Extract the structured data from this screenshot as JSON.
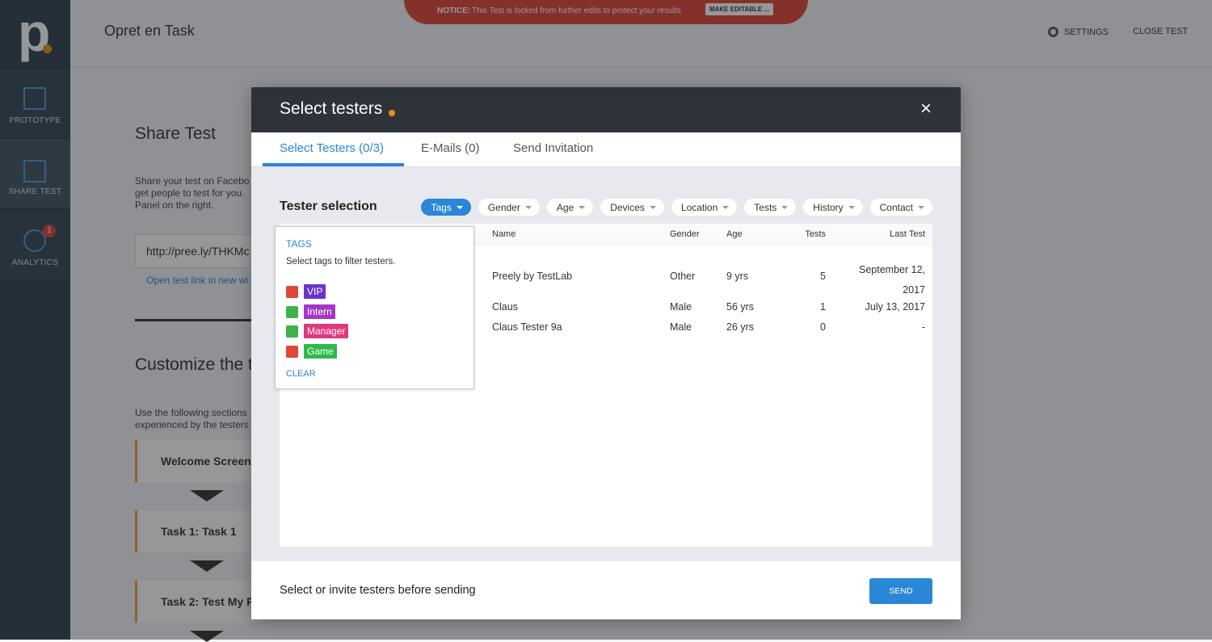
{
  "app": {
    "logo": "p",
    "page_title": "Opret en Task",
    "notice_label": "NOTICE:",
    "notice_text": "This Test is locked from further edits to protect your results",
    "notice_button": "MAKE EDITABLE ...",
    "settings": "SETTINGS",
    "close_test": "CLOSE TEST"
  },
  "sidebar": [
    {
      "label": "PROTOTYPE"
    },
    {
      "label": "SHARE TEST"
    },
    {
      "label": "ANALYTICS",
      "badge": "1"
    }
  ],
  "background": {
    "share_title": "Share Test",
    "share_lines": [
      "Share your test on Facebo",
      "get people to test for you.",
      "Panel on the right."
    ],
    "link": "http://pree.ly/THKMc",
    "open_link": "Open test link in new wi",
    "customize_title": "Customize the t",
    "customize_lines": [
      "Use the following sections",
      "experienced by the testers"
    ],
    "steps": [
      "Welcome Screen",
      "Task 1: Task 1",
      "Task 2: Test My P"
    ]
  },
  "modal": {
    "title": "Select testers",
    "close": "×",
    "tabs": [
      "Select Testers (0/3)",
      "E-Mails (0)",
      "Send Invitation"
    ],
    "section_title": "Tester selection",
    "filters": [
      "Tags",
      "Gender",
      "Age",
      "Devices",
      "Location",
      "Tests",
      "History",
      "Contact"
    ],
    "table": {
      "columns": [
        "Name",
        "Gender",
        "Age",
        "Tests",
        "Last Test"
      ],
      "rows": [
        [
          "Preely by TestLab",
          "Other",
          "9 yrs",
          "5",
          "September 12, 2017"
        ],
        [
          "Claus",
          "Male",
          "56 yrs",
          "1",
          "July 13, 2017"
        ],
        [
          "Claus Tester 9a",
          "Male",
          "26 yrs",
          "0",
          "-"
        ]
      ]
    },
    "tags_popup": {
      "title": "TAGS",
      "hint": "Select tags to filter testers.",
      "tags": [
        {
          "name": "VIP",
          "state": "excluded",
          "color": "#6b34c6"
        },
        {
          "name": "Intern",
          "state": "included",
          "color": "#a437c6"
        },
        {
          "name": "Manager",
          "state": "included",
          "color": "#e0387f"
        },
        {
          "name": "Game",
          "state": "excluded",
          "color": "#2dba4b"
        }
      ],
      "clear": "CLEAR"
    },
    "footer_text": "Select or invite testers before sending",
    "send": "SEND"
  }
}
